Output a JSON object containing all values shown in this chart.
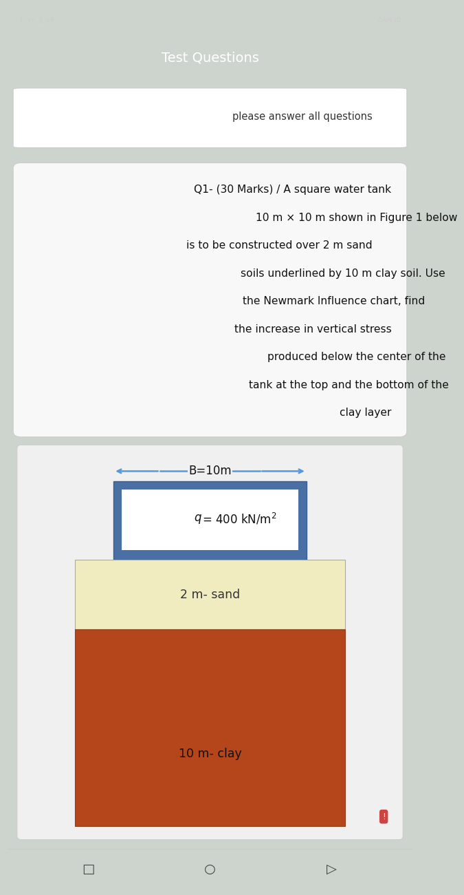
{
  "status_bar_bg": "#2a2a2a",
  "page_bg": "#cdd4cd",
  "header_bg": "#6b9a72",
  "header_text": "Test Questions",
  "header_text_color": "#ffffff",
  "card1_bg": "#ffffff",
  "card1_text": "please answer all questions",
  "card2_bg": "#f8f8f8",
  "question_lines": [
    "Q1- (30 Marks) / A square water tank",
    "10 m × 10 m shown in Figure 1 below",
    "is to be constructed over 2 m sand",
    "soils underlined by 10 m clay soil. Use",
    "the Newmark Influence chart, find",
    "the increase in vertical stress",
    "produced below the center of the",
    "tank at the top and the bottom of the",
    "clay layer"
  ],
  "diagram_bg": "#f0f0f0",
  "arrow_color": "#5599dd",
  "arrow_label": "B=10m",
  "tank_color": "#4a6fa5",
  "tank_label_italic": "q",
  "tank_label_rest": "= 400 kN/m",
  "tank_inner_bg": "#ffffff",
  "sand_color": "#f0ecc0",
  "sand_label": "2 m- sand",
  "clay_color": "#b5451b",
  "clay_label": "10 m- clay",
  "bottom_bar_bg": "#e8e8e8",
  "exclamation_bg": "#cc4444",
  "exclamation_color": "#ffffff"
}
